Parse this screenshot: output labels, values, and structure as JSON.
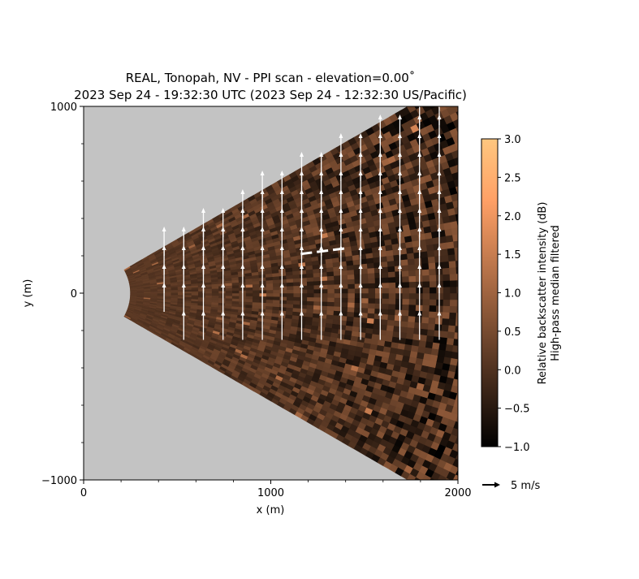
{
  "chart_data": {
    "type": "heatmap",
    "title_line1": "REAL, Tonopah, NV - PPI scan - elevation=0.00˚",
    "title_line2": "2023 Sep 24 - 19:32:30 UTC (2023 Sep 24 - 12:32:30 US/Pacific)",
    "xlabel": "x (m)",
    "ylabel": "y (m)",
    "xlim": [
      0,
      2000
    ],
    "ylim": [
      -1000,
      1000
    ],
    "x_ticks": [
      0,
      1000,
      2000
    ],
    "x_tick_labels": [
      "0",
      "1000",
      "2000"
    ],
    "y_ticks": [
      -1000,
      0,
      1000
    ],
    "y_tick_labels": [
      "−1000",
      "0",
      "1000"
    ],
    "scan_sector": {
      "apex_x": 0,
      "apex_y": 0,
      "min_range": 250,
      "max_range": 2250,
      "half_angle_deg": 30
    },
    "background_color": "#c3c3c3",
    "colorbar": {
      "label_line1": "Relative backscatter intensity (dB)",
      "label_line2": "High-pass median filtered",
      "min": -1.0,
      "max": 3.0,
      "ticks": [
        -1.0,
        -0.5,
        0.0,
        0.5,
        1.0,
        1.5,
        2.0,
        2.5,
        3.0
      ],
      "tick_labels": [
        "−1.0",
        "−0.5",
        "0.0",
        "0.5",
        "1.0",
        "1.5",
        "2.0",
        "2.5",
        "3.0"
      ],
      "colormap": "copper",
      "colors": [
        "#000000",
        "#ffc77f"
      ]
    },
    "wind_vectors": {
      "reference_label": "5 m/s",
      "reference_speed": 5,
      "color": "#ffffff",
      "grid_x_start": 430,
      "grid_x_step": 105,
      "grid_x_count": 15,
      "grid_y": [
        -250,
        -100,
        0,
        100,
        200,
        300,
        400,
        500,
        600,
        700,
        800,
        900
      ],
      "u": 0.0,
      "v": 5.0
    },
    "annotation_line": {
      "style": "dashed",
      "color": "#ffffff",
      "x": [
        1160,
        1400
      ],
      "y": [
        210,
        240
      ]
    }
  }
}
